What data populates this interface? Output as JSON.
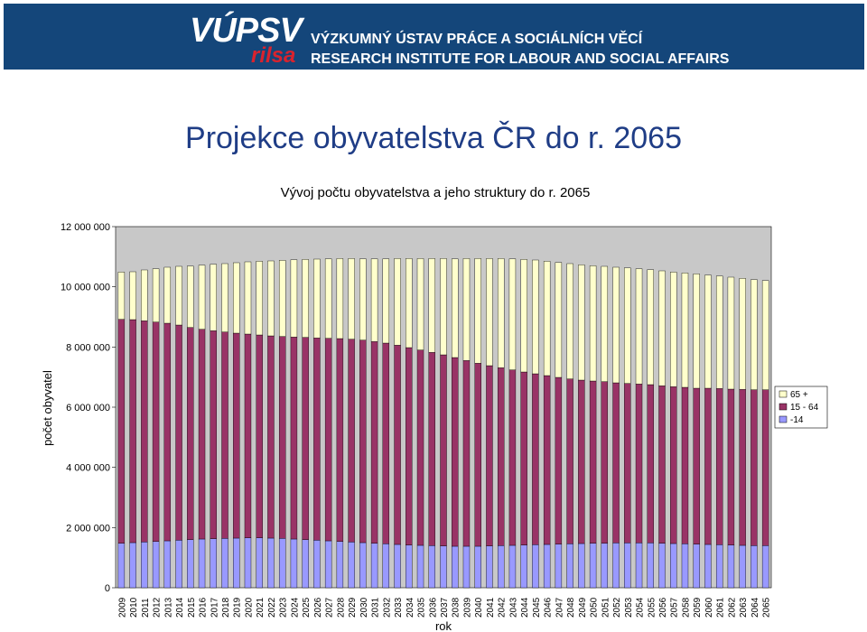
{
  "header": {
    "logo_main": "VÚPSV",
    "logo_sub": "rilsa",
    "institute_cz": "VÝZKUMNÝ ÚSTAV PRÁCE A SOCIÁLNÍCH VĚCÍ",
    "institute_en": "RESEARCH INSTITUTE FOR LABOUR AND SOCIAL AFFAIRS",
    "banner_color": "#14467a",
    "accent_color": "#d9232e"
  },
  "page": {
    "title": "Projekce obyvatelstva ČR do r. 2065"
  },
  "chart_data": {
    "type": "bar",
    "stacked": true,
    "title": "Vývoj  počtu obyvatelstva a  jeho struktury do r. 2065",
    "xlabel": "rok",
    "ylabel": "počet obyvatel",
    "ylim": [
      0,
      12000000
    ],
    "yticks": [
      0,
      2000000,
      4000000,
      6000000,
      8000000,
      10000000,
      12000000
    ],
    "ytick_labels": [
      "0",
      "2 000 000",
      "4 000 000",
      "6 000 000",
      "8 000 000",
      "10 000 000",
      "12 000 000"
    ],
    "grid": false,
    "legend_position": "right",
    "plot_background": "#c8c8c8",
    "categories": [
      "2009",
      "2010",
      "2011",
      "2012",
      "2013",
      "2014",
      "2015",
      "2016",
      "2017",
      "2018",
      "2019",
      "2020",
      "2021",
      "2022",
      "2023",
      "2024",
      "2025",
      "2026",
      "2027",
      "2028",
      "2029",
      "2030",
      "2031",
      "2032",
      "2033",
      "2034",
      "2035",
      "2036",
      "2037",
      "2038",
      "2039",
      "2040",
      "2041",
      "2042",
      "2043",
      "2044",
      "2045",
      "2046",
      "2047",
      "2048",
      "2049",
      "2050",
      "2051",
      "2052",
      "2053",
      "2054",
      "2055",
      "2056",
      "2057",
      "2058",
      "2059",
      "2060",
      "2061",
      "2062",
      "2063",
      "2064",
      "2065"
    ],
    "series": [
      {
        "name": "-14",
        "color": "#9999ff",
        "values": [
          1480000,
          1500000,
          1520000,
          1540000,
          1560000,
          1580000,
          1600000,
          1620000,
          1630000,
          1640000,
          1650000,
          1660000,
          1660000,
          1650000,
          1640000,
          1620000,
          1600000,
          1580000,
          1560000,
          1540000,
          1520000,
          1500000,
          1480000,
          1460000,
          1440000,
          1420000,
          1410000,
          1400000,
          1390000,
          1380000,
          1380000,
          1380000,
          1390000,
          1400000,
          1410000,
          1420000,
          1430000,
          1440000,
          1450000,
          1460000,
          1470000,
          1480000,
          1480000,
          1490000,
          1490000,
          1490000,
          1490000,
          1480000,
          1470000,
          1460000,
          1450000,
          1440000,
          1430000,
          1420000,
          1410000,
          1400000,
          1400000
        ]
      },
      {
        "name": "15 - 64",
        "color": "#993366",
        "values": [
          7440000,
          7410000,
          7350000,
          7290000,
          7230000,
          7150000,
          7050000,
          6970000,
          6910000,
          6860000,
          6810000,
          6770000,
          6740000,
          6720000,
          6710000,
          6710000,
          6720000,
          6720000,
          6730000,
          6740000,
          6740000,
          6730000,
          6700000,
          6670000,
          6620000,
          6560000,
          6490000,
          6420000,
          6350000,
          6270000,
          6170000,
          6080000,
          5990000,
          5910000,
          5830000,
          5750000,
          5680000,
          5610000,
          5540000,
          5480000,
          5430000,
          5390000,
          5370000,
          5320000,
          5300000,
          5280000,
          5260000,
          5230000,
          5210000,
          5200000,
          5180000,
          5190000,
          5190000,
          5180000,
          5180000,
          5180000,
          5180000
        ]
      },
      {
        "name": "65 +",
        "color": "#ffffcc",
        "values": [
          1570000,
          1590000,
          1690000,
          1770000,
          1860000,
          1950000,
          2040000,
          2130000,
          2210000,
          2270000,
          2340000,
          2400000,
          2450000,
          2490000,
          2530000,
          2570000,
          2590000,
          2620000,
          2640000,
          2660000,
          2680000,
          2700000,
          2750000,
          2800000,
          2880000,
          2960000,
          3040000,
          3120000,
          3200000,
          3280000,
          3390000,
          3480000,
          3560000,
          3630000,
          3690000,
          3740000,
          3780000,
          3800000,
          3820000,
          3830000,
          3830000,
          3830000,
          3830000,
          3840000,
          3840000,
          3830000,
          3820000,
          3820000,
          3810000,
          3800000,
          3800000,
          3760000,
          3740000,
          3720000,
          3690000,
          3660000,
          3630000
        ]
      }
    ],
    "legend_order": [
      "65 +",
      "15 - 64",
      "-14"
    ]
  }
}
